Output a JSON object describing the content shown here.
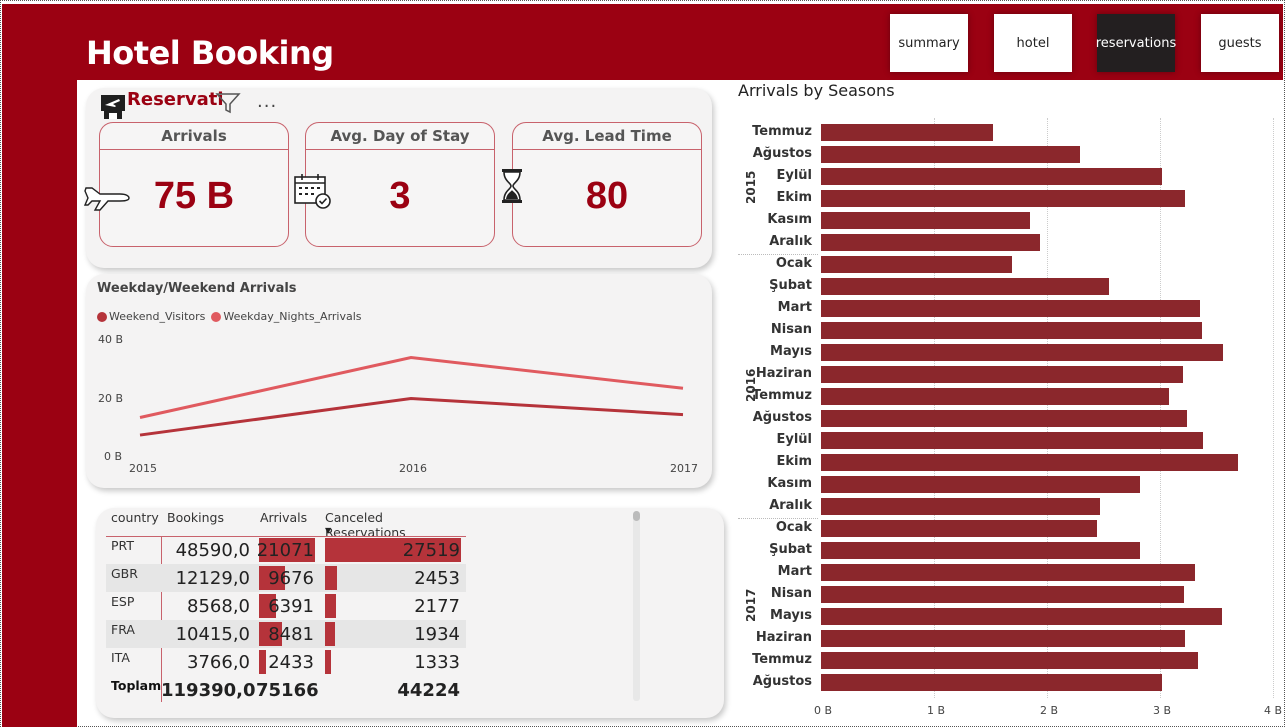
{
  "app": {
    "title": "Hotel Booking"
  },
  "nav": {
    "summary": "summary",
    "hotel": "hotel",
    "reservations": "reservations",
    "guests": "guests",
    "active": "reservations"
  },
  "reservations_card": {
    "title": "Reservati",
    "more_label": "...",
    "kpis": [
      {
        "label": "Arrivals",
        "value": "75 B",
        "icon": "airplane-icon"
      },
      {
        "label": "Avg. Day of Stay",
        "value": "3",
        "icon": "calendar-icon"
      },
      {
        "label": "Avg. Lead Time",
        "value": "80",
        "icon": "hourglass-icon"
      }
    ]
  },
  "weekday_chart": {
    "title": "Weekday/Weekend Arrivals",
    "legend": [
      "Weekend_Visitors",
      "Weekday_Nights_Arrivals"
    ],
    "y_ticks": [
      "40 B",
      "20 B",
      "0 B"
    ],
    "x_ticks": [
      "2015",
      "2016",
      "2017"
    ]
  },
  "country_table": {
    "headers": [
      "country",
      "Bookings",
      "Arrivals",
      "Canceled Reservations"
    ],
    "rows": [
      {
        "country": "PRT",
        "bookings": "48590,0",
        "arrivals": "21071",
        "canceled": "27519"
      },
      {
        "country": "GBR",
        "bookings": "12129,0",
        "arrivals": "9676",
        "canceled": "2453"
      },
      {
        "country": "ESP",
        "bookings": "8568,0",
        "arrivals": "6391",
        "canceled": "2177"
      },
      {
        "country": "FRA",
        "bookings": "10415,0",
        "arrivals": "8481",
        "canceled": "1934"
      },
      {
        "country": "ITA",
        "bookings": "3766,0",
        "arrivals": "2433",
        "canceled": "1333"
      }
    ],
    "total": {
      "label": "Toplam",
      "bookings": "119390,0",
      "arrivals": "75166",
      "canceled": "44224"
    }
  },
  "seasons_chart": {
    "title": "Arrivals by Seasons",
    "x_ticks": [
      "0 B",
      "1 B",
      "2 B",
      "3 B",
      "4 B"
    ],
    "year_labels": [
      "2015",
      "2016",
      "2017"
    ]
  },
  "colors": {
    "brand": "#9b0112",
    "bar": "#8b272c",
    "weekend": "#b5333a",
    "weekday": "#e05a5f"
  },
  "chart_data": [
    {
      "type": "line",
      "title": "Weekday/Weekend Arrivals",
      "x": [
        "2015",
        "2016",
        "2017"
      ],
      "ylim": [
        0,
        40
      ],
      "series": [
        {
          "name": "Weekend_Visitors",
          "values": [
            7.5,
            20,
            14.5
          ]
        },
        {
          "name": "Weekday_Nights_Arrivals",
          "values": [
            13.5,
            34,
            23.5
          ]
        }
      ]
    },
    {
      "type": "bar",
      "orientation": "horizontal",
      "title": "Arrivals by Seasons",
      "xlim": [
        0,
        4
      ],
      "categories": [
        {
          "year": "2015",
          "month": "Temmuz",
          "value": 1.52
        },
        {
          "year": "2015",
          "month": "Ağustos",
          "value": 2.29
        },
        {
          "year": "2015",
          "month": "Eylül",
          "value": 3.02
        },
        {
          "year": "2015",
          "month": "Ekim",
          "value": 3.22
        },
        {
          "year": "2015",
          "month": "Kasım",
          "value": 1.85
        },
        {
          "year": "2015",
          "month": "Aralık",
          "value": 1.94
        },
        {
          "year": "2016",
          "month": "Ocak",
          "value": 1.69
        },
        {
          "year": "2016",
          "month": "Şubat",
          "value": 2.55
        },
        {
          "year": "2016",
          "month": "Mart",
          "value": 3.35
        },
        {
          "year": "2016",
          "month": "Nisan",
          "value": 3.37
        },
        {
          "year": "2016",
          "month": "Mayıs",
          "value": 3.56
        },
        {
          "year": "2016",
          "month": "Haziran",
          "value": 3.2
        },
        {
          "year": "2016",
          "month": "Temmuz",
          "value": 3.08
        },
        {
          "year": "2016",
          "month": "Ağustos",
          "value": 3.24
        },
        {
          "year": "2016",
          "month": "Eylül",
          "value": 3.38
        },
        {
          "year": "2016",
          "month": "Ekim",
          "value": 3.69
        },
        {
          "year": "2016",
          "month": "Kasım",
          "value": 2.82
        },
        {
          "year": "2016",
          "month": "Aralık",
          "value": 2.47
        },
        {
          "year": "2017",
          "month": "Ocak",
          "value": 2.44
        },
        {
          "year": "2017",
          "month": "Şubat",
          "value": 2.82
        },
        {
          "year": "2017",
          "month": "Mart",
          "value": 3.31
        },
        {
          "year": "2017",
          "month": "Nisan",
          "value": 3.21
        },
        {
          "year": "2017",
          "month": "Mayıs",
          "value": 3.55
        },
        {
          "year": "2017",
          "month": "Haziran",
          "value": 3.22
        },
        {
          "year": "2017",
          "month": "Temmuz",
          "value": 3.34
        },
        {
          "year": "2017",
          "month": "Ağustos",
          "value": 3.02
        }
      ]
    }
  ]
}
